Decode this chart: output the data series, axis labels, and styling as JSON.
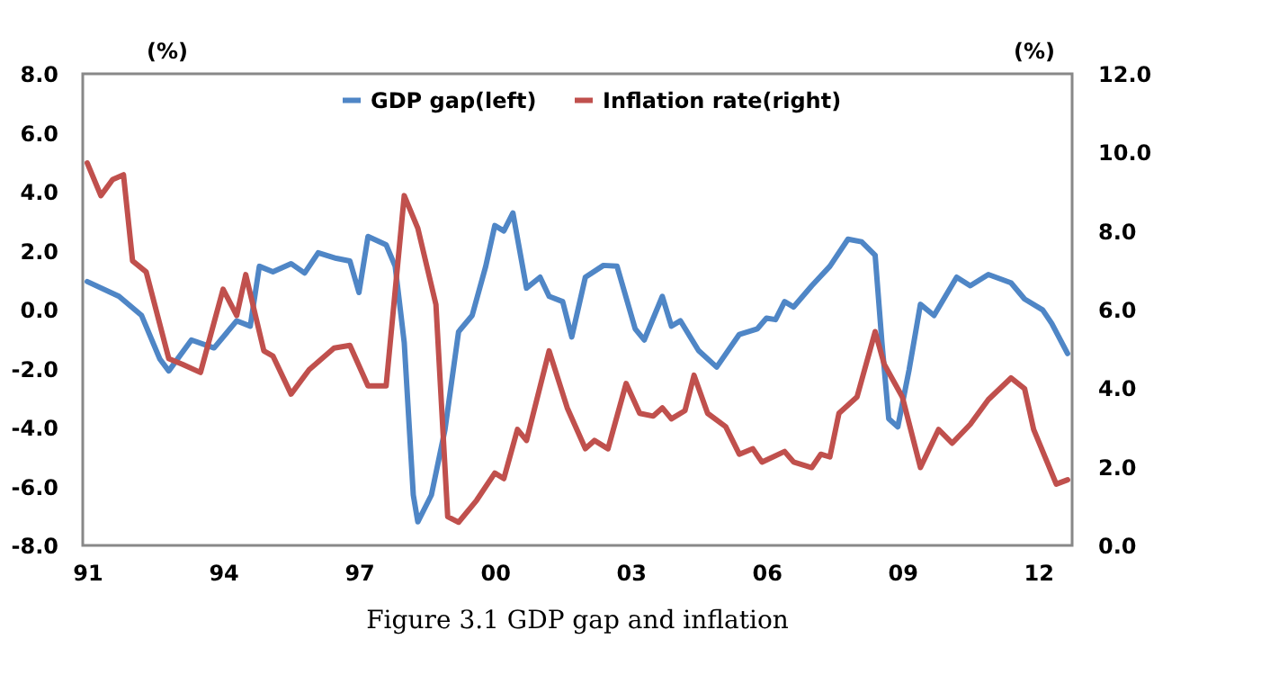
{
  "chart_data": {
    "type": "line",
    "title": "Figure 3.1 GDP gap and inflation",
    "ylabel": "(%)",
    "y2label": "(%)",
    "xlim": [
      1990.9,
      2012.75
    ],
    "xticks": [
      {
        "value": 1991,
        "label": "91"
      },
      {
        "value": 1994,
        "label": "94"
      },
      {
        "value": 1997,
        "label": "97"
      },
      {
        "value": 2000,
        "label": "00"
      },
      {
        "value": 2003,
        "label": "03"
      },
      {
        "value": 2006,
        "label": "06"
      },
      {
        "value": 2009,
        "label": "09"
      },
      {
        "value": 2012,
        "label": "12"
      }
    ],
    "ylim": [
      -8,
      8
    ],
    "yticks": [
      {
        "value": -8,
        "label": "-8.0"
      },
      {
        "value": -6,
        "label": "-6.0"
      },
      {
        "value": -4,
        "label": "-4.0"
      },
      {
        "value": -2,
        "label": "-2.0"
      },
      {
        "value": 0,
        "label": "0.0"
      },
      {
        "value": 2,
        "label": "2.0"
      },
      {
        "value": 4,
        "label": "4.0"
      },
      {
        "value": 6,
        "label": "6.0"
      },
      {
        "value": 8,
        "label": "8.0"
      }
    ],
    "y2lim": [
      0,
      12
    ],
    "y2ticks": [
      {
        "value": 0,
        "label": "0.0"
      },
      {
        "value": 2,
        "label": "2.0"
      },
      {
        "value": 4,
        "label": "4.0"
      },
      {
        "value": 6,
        "label": "6.0"
      },
      {
        "value": 8,
        "label": "8.0"
      },
      {
        "value": 10,
        "label": "10.0"
      },
      {
        "value": 12,
        "label": "12.0"
      }
    ],
    "grid": false,
    "legend": "top",
    "marker": "none",
    "line_style": "solid",
    "series": [
      {
        "name": "GDP gap(left)",
        "color": "#4f86c6",
        "x": [
          1991.0,
          1991.7,
          1992.2,
          1992.6,
          1992.8,
          1993.3,
          1993.8,
          1994.3,
          1994.6,
          1994.8,
          1995.1,
          1995.5,
          1995.8,
          1996.1,
          1996.5,
          1996.8,
          1997.0,
          1997.2,
          1997.6,
          1997.8,
          1998.0,
          1998.2,
          1998.3,
          1998.6,
          1998.9,
          1999.2,
          1999.5,
          1999.8,
          2000.0,
          2000.2,
          2000.4,
          2000.7,
          2001.0,
          2001.2,
          2001.5,
          2001.7,
          2002.0,
          2002.4,
          2002.7,
          2003.1,
          2003.3,
          2003.7,
          2003.9,
          2004.1,
          2004.5,
          2004.9,
          2005.4,
          2005.8,
          2006.0,
          2006.2,
          2006.4,
          2006.6,
          2007.0,
          2007.4,
          2007.8,
          2008.1,
          2008.4,
          2008.55,
          2008.7,
          2008.9,
          2009.15,
          2009.4,
          2009.7,
          2010.2,
          2010.5,
          2010.9,
          2011.4,
          2011.7,
          2012.1,
          2012.3,
          2012.65
        ],
        "values": [
          0.95,
          0.45,
          -0.2,
          -1.67,
          -2.08,
          -1.03,
          -1.3,
          -0.38,
          -0.56,
          1.47,
          1.28,
          1.56,
          1.24,
          1.93,
          1.74,
          1.65,
          0.58,
          2.48,
          2.2,
          1.47,
          -1.12,
          -6.29,
          -7.2,
          -6.29,
          -4.07,
          -0.75,
          -0.2,
          1.47,
          2.85,
          2.67,
          3.28,
          0.73,
          1.1,
          0.45,
          0.27,
          -0.93,
          1.1,
          1.5,
          1.47,
          -0.65,
          -1.03,
          0.45,
          -0.56,
          -0.38,
          -1.39,
          -1.95,
          -0.84,
          -0.65,
          -0.29,
          -0.34,
          0.27,
          0.09,
          0.81,
          1.47,
          2.39,
          2.3,
          1.84,
          -1.12,
          -3.7,
          -3.98,
          -2.04,
          0.18,
          -0.2,
          1.1,
          0.81,
          1.19,
          0.91,
          0.36,
          -0.01,
          -0.47,
          -1.49
        ]
      },
      {
        "name": "Inflation rate(right)",
        "color": "#c0504d",
        "axis": "y2",
        "x": [
          1991.0,
          1991.3,
          1991.56,
          1991.8,
          1992.0,
          1992.3,
          1992.8,
          1993.1,
          1993.5,
          1994.0,
          1994.3,
          1994.5,
          1994.9,
          1995.1,
          1995.5,
          1995.9,
          1996.45,
          1996.8,
          1997.2,
          1997.6,
          1998.0,
          1998.3,
          1998.7,
          1998.96,
          1999.2,
          1999.6,
          2000.0,
          2000.2,
          2000.5,
          2000.7,
          2001.2,
          2001.6,
          2002.0,
          2002.2,
          2002.5,
          2002.9,
          2003.2,
          2003.5,
          2003.7,
          2003.9,
          2004.2,
          2004.4,
          2004.7,
          2005.1,
          2005.4,
          2005.7,
          2005.9,
          2006.4,
          2006.6,
          2007.0,
          2007.2,
          2007.4,
          2007.6,
          2008.0,
          2008.4,
          2008.6,
          2009.0,
          2009.4,
          2009.8,
          2010.1,
          2010.5,
          2010.9,
          2011.4,
          2011.7,
          2011.9,
          2012.4,
          2012.65
        ],
        "values": [
          9.73,
          8.9,
          9.31,
          9.43,
          7.24,
          6.96,
          4.75,
          4.61,
          4.4,
          6.52,
          5.85,
          6.89,
          4.95,
          4.82,
          3.85,
          4.47,
          5.02,
          5.09,
          4.06,
          4.06,
          8.9,
          8.07,
          6.13,
          0.73,
          0.59,
          1.15,
          1.84,
          1.7,
          2.95,
          2.67,
          4.95,
          3.5,
          2.46,
          2.67,
          2.46,
          4.12,
          3.36,
          3.29,
          3.5,
          3.22,
          3.43,
          4.33,
          3.36,
          3.02,
          2.32,
          2.46,
          2.12,
          2.39,
          2.12,
          1.98,
          2.32,
          2.25,
          3.36,
          3.78,
          5.44,
          4.61,
          3.78,
          1.98,
          2.95,
          2.6,
          3.08,
          3.71,
          4.26,
          3.99,
          2.95,
          1.56,
          1.67
        ]
      }
    ]
  }
}
